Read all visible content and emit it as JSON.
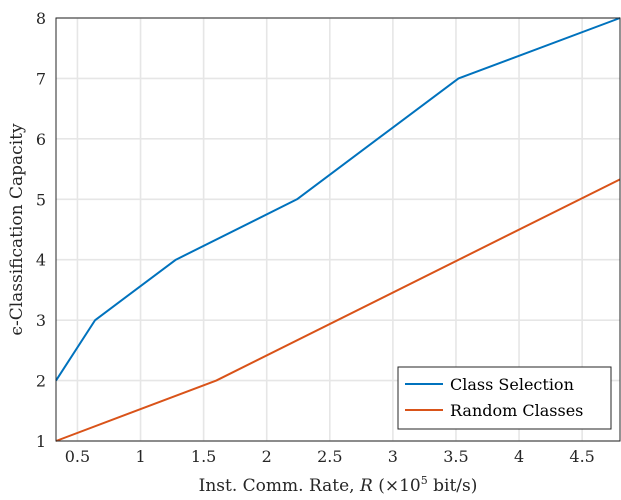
{
  "chart_data": {
    "type": "line",
    "xlabel": "Inst. Comm. Rate, R (×10^5 bit/s)",
    "xlabel_parts": {
      "pre": "Inst. Comm. Rate, ",
      "var": "R",
      "open": " (×10",
      "exp": "5",
      "post": " bit/s)"
    },
    "ylabel": "ϵ-Classification Capacity",
    "xlim": [
      0.33,
      4.8
    ],
    "ylim": [
      1,
      8
    ],
    "x_ticks": [
      "0.5",
      "1",
      "1.5",
      "2",
      "2.5",
      "3",
      "3.5",
      "4",
      "4.5"
    ],
    "y_ticks": [
      "1",
      "2",
      "3",
      "4",
      "5",
      "6",
      "7",
      "8"
    ],
    "grid": true,
    "legend_position": "bottom-right",
    "series": [
      {
        "name": "Class Selection",
        "color": "#0072BD",
        "points": [
          [
            0.33,
            2
          ],
          [
            0.64,
            3
          ],
          [
            1.28,
            4
          ],
          [
            2.24,
            5
          ],
          [
            3.52,
            7
          ],
          [
            4.8,
            8
          ]
        ]
      },
      {
        "name": "Random Classes",
        "color": "#D95319",
        "points": [
          [
            0.33,
            1
          ],
          [
            1.6,
            2
          ],
          [
            4.8,
            5.33
          ]
        ]
      }
    ]
  }
}
